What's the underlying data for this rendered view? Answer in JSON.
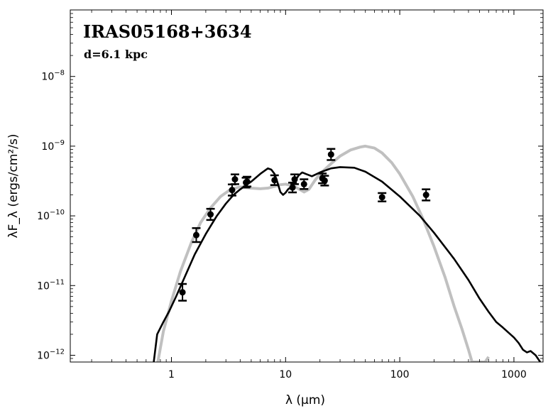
{
  "chart_data": {
    "type": "scatter",
    "title": "IRAS05168+3634",
    "subtitle": "d=6.1 kpc",
    "xlabel": "λ (μm)",
    "ylabel": "λF_λ (ergs/cm²/s)",
    "x_scale": "log",
    "y_scale": "log",
    "xlim": [
      0.13,
      1800
    ],
    "ylim": [
      8e-13,
      9e-08
    ],
    "x_ticks": [
      {
        "value": 1,
        "label": "1"
      },
      {
        "value": 10,
        "label": "10"
      },
      {
        "value": 100,
        "label": "100"
      },
      {
        "value": 1000,
        "label": "1000"
      }
    ],
    "y_ticks": [
      {
        "value": 1e-12,
        "base": "10",
        "exp": "−12"
      },
      {
        "value": 1e-11,
        "base": "10",
        "exp": "−11"
      },
      {
        "value": 1e-10,
        "base": "10",
        "exp": "−10"
      },
      {
        "value": 1e-09,
        "base": "10",
        "exp": "−9"
      },
      {
        "value": 1e-08,
        "base": "10",
        "exp": "−8"
      }
    ],
    "grid": false,
    "series": [
      {
        "kind": "points",
        "color": "#000000",
        "points": [
          {
            "x": 1.25,
            "y": 8e-12,
            "err": 0.12
          },
          {
            "x": 1.65,
            "y": 5.3e-11,
            "err": 0.1
          },
          {
            "x": 2.2,
            "y": 1.05e-10,
            "err": 0.08
          },
          {
            "x": 3.4,
            "y": 2.35e-10,
            "err": 0.08
          },
          {
            "x": 3.6,
            "y": 3.35e-10,
            "err": 0.07
          },
          {
            "x": 4.5,
            "y": 3e-10,
            "err": 0.07
          },
          {
            "x": 4.6,
            "y": 3.1e-10,
            "err": 0.07
          },
          {
            "x": 8.0,
            "y": 3.25e-10,
            "err": 0.07
          },
          {
            "x": 11.5,
            "y": 2.55e-10,
            "err": 0.07
          },
          {
            "x": 12.0,
            "y": 3.35e-10,
            "err": 0.07
          },
          {
            "x": 14.5,
            "y": 2.85e-10,
            "err": 0.07
          },
          {
            "x": 21.0,
            "y": 3.45e-10,
            "err": 0.07
          },
          {
            "x": 22.0,
            "y": 3.2e-10,
            "err": 0.07
          },
          {
            "x": 25.0,
            "y": 7.6e-10,
            "err": 0.08
          },
          {
            "x": 70.0,
            "y": 1.85e-10,
            "err": 0.06
          },
          {
            "x": 170.0,
            "y": 2e-10,
            "err": 0.08
          }
        ]
      },
      {
        "kind": "line",
        "color": "#c0c0c0",
        "points": [
          [
            0.76,
            8e-13
          ],
          [
            0.85,
            2.2e-12
          ],
          [
            1.0,
            6e-12
          ],
          [
            1.2,
            1.6e-11
          ],
          [
            1.5,
            4.2e-11
          ],
          [
            1.8,
            8e-11
          ],
          [
            2.2,
            1.3e-10
          ],
          [
            2.7,
            1.9e-10
          ],
          [
            3.3,
            2.4e-10
          ],
          [
            4.0,
            2.6e-10
          ],
          [
            5.0,
            2.5e-10
          ],
          [
            6.0,
            2.45e-10
          ],
          [
            7.0,
            2.5e-10
          ],
          [
            8.0,
            2.65e-10
          ],
          [
            9.0,
            2.8e-10
          ],
          [
            10.0,
            2.85e-10
          ],
          [
            11.5,
            2.7e-10
          ],
          [
            13.0,
            2.45e-10
          ],
          [
            14.5,
            2.2e-10
          ],
          [
            16.0,
            2.4e-10
          ],
          [
            18.0,
            3.2e-10
          ],
          [
            20.0,
            4e-10
          ],
          [
            25.0,
            5.6e-10
          ],
          [
            30.0,
            7.2e-10
          ],
          [
            37.0,
            8.8e-10
          ],
          [
            45.0,
            9.7e-10
          ],
          [
            50.0,
            1e-09
          ],
          [
            60.0,
            9.4e-10
          ],
          [
            70.0,
            8e-10
          ],
          [
            85.0,
            5.8e-10
          ],
          [
            100.0,
            4e-10
          ],
          [
            130.0,
            1.9e-10
          ],
          [
            160.0,
            9e-11
          ],
          [
            200.0,
            3.6e-11
          ],
          [
            250.0,
            1.3e-11
          ],
          [
            300.0,
            5e-12
          ],
          [
            350.0,
            2.4e-12
          ],
          [
            400.0,
            1.2e-12
          ],
          [
            430.0,
            8e-13
          ],
          [
            560.0,
            8e-13
          ],
          [
            600.0,
            9.5e-13
          ]
        ]
      },
      {
        "kind": "line",
        "color": "#000000",
        "points": [
          [
            0.7,
            8e-13
          ],
          [
            0.75,
            2e-12
          ],
          [
            0.85,
            3e-12
          ],
          [
            0.95,
            4.2e-12
          ],
          [
            1.1,
            7e-12
          ],
          [
            1.3,
            1.3e-11
          ],
          [
            1.6,
            2.8e-11
          ],
          [
            2.0,
            5.5e-11
          ],
          [
            2.5,
            1e-10
          ],
          [
            3.0,
            1.5e-10
          ],
          [
            3.5,
            2e-10
          ],
          [
            4.0,
            2.4e-10
          ],
          [
            5.0,
            3.1e-10
          ],
          [
            6.0,
            4e-10
          ],
          [
            7.0,
            4.8e-10
          ],
          [
            7.5,
            4.6e-10
          ],
          [
            8.0,
            4e-10
          ],
          [
            8.5,
            3e-10
          ],
          [
            9.0,
            2.2e-10
          ],
          [
            9.5,
            2e-10
          ],
          [
            10.0,
            2.15e-10
          ],
          [
            10.5,
            2.4e-10
          ],
          [
            11.0,
            2.55e-10
          ],
          [
            12.0,
            3.1e-10
          ],
          [
            13.0,
            3.8e-10
          ],
          [
            14.0,
            4.2e-10
          ],
          [
            15.0,
            4e-10
          ],
          [
            17.0,
            3.7e-10
          ],
          [
            20.0,
            4.2e-10
          ],
          [
            25.0,
            4.8e-10
          ],
          [
            30.0,
            5e-10
          ],
          [
            40.0,
            4.9e-10
          ],
          [
            50.0,
            4.3e-10
          ],
          [
            70.0,
            3.1e-10
          ],
          [
            100.0,
            1.9e-10
          ],
          [
            150.0,
            1e-10
          ],
          [
            200.0,
            5.7e-11
          ],
          [
            300.0,
            2.4e-11
          ],
          [
            400.0,
            1.2e-11
          ],
          [
            500.0,
            6.5e-12
          ],
          [
            600.0,
            4.2e-12
          ],
          [
            700.0,
            3e-12
          ],
          [
            800.0,
            2.5e-12
          ],
          [
            900.0,
            2.1e-12
          ],
          [
            1000.0,
            1.8e-12
          ],
          [
            1100.0,
            1.5e-12
          ],
          [
            1200.0,
            1.2e-12
          ],
          [
            1300.0,
            1.1e-12
          ],
          [
            1400.0,
            1.15e-12
          ],
          [
            1550.0,
            1e-12
          ],
          [
            1700.0,
            8e-13
          ]
        ]
      }
    ]
  }
}
